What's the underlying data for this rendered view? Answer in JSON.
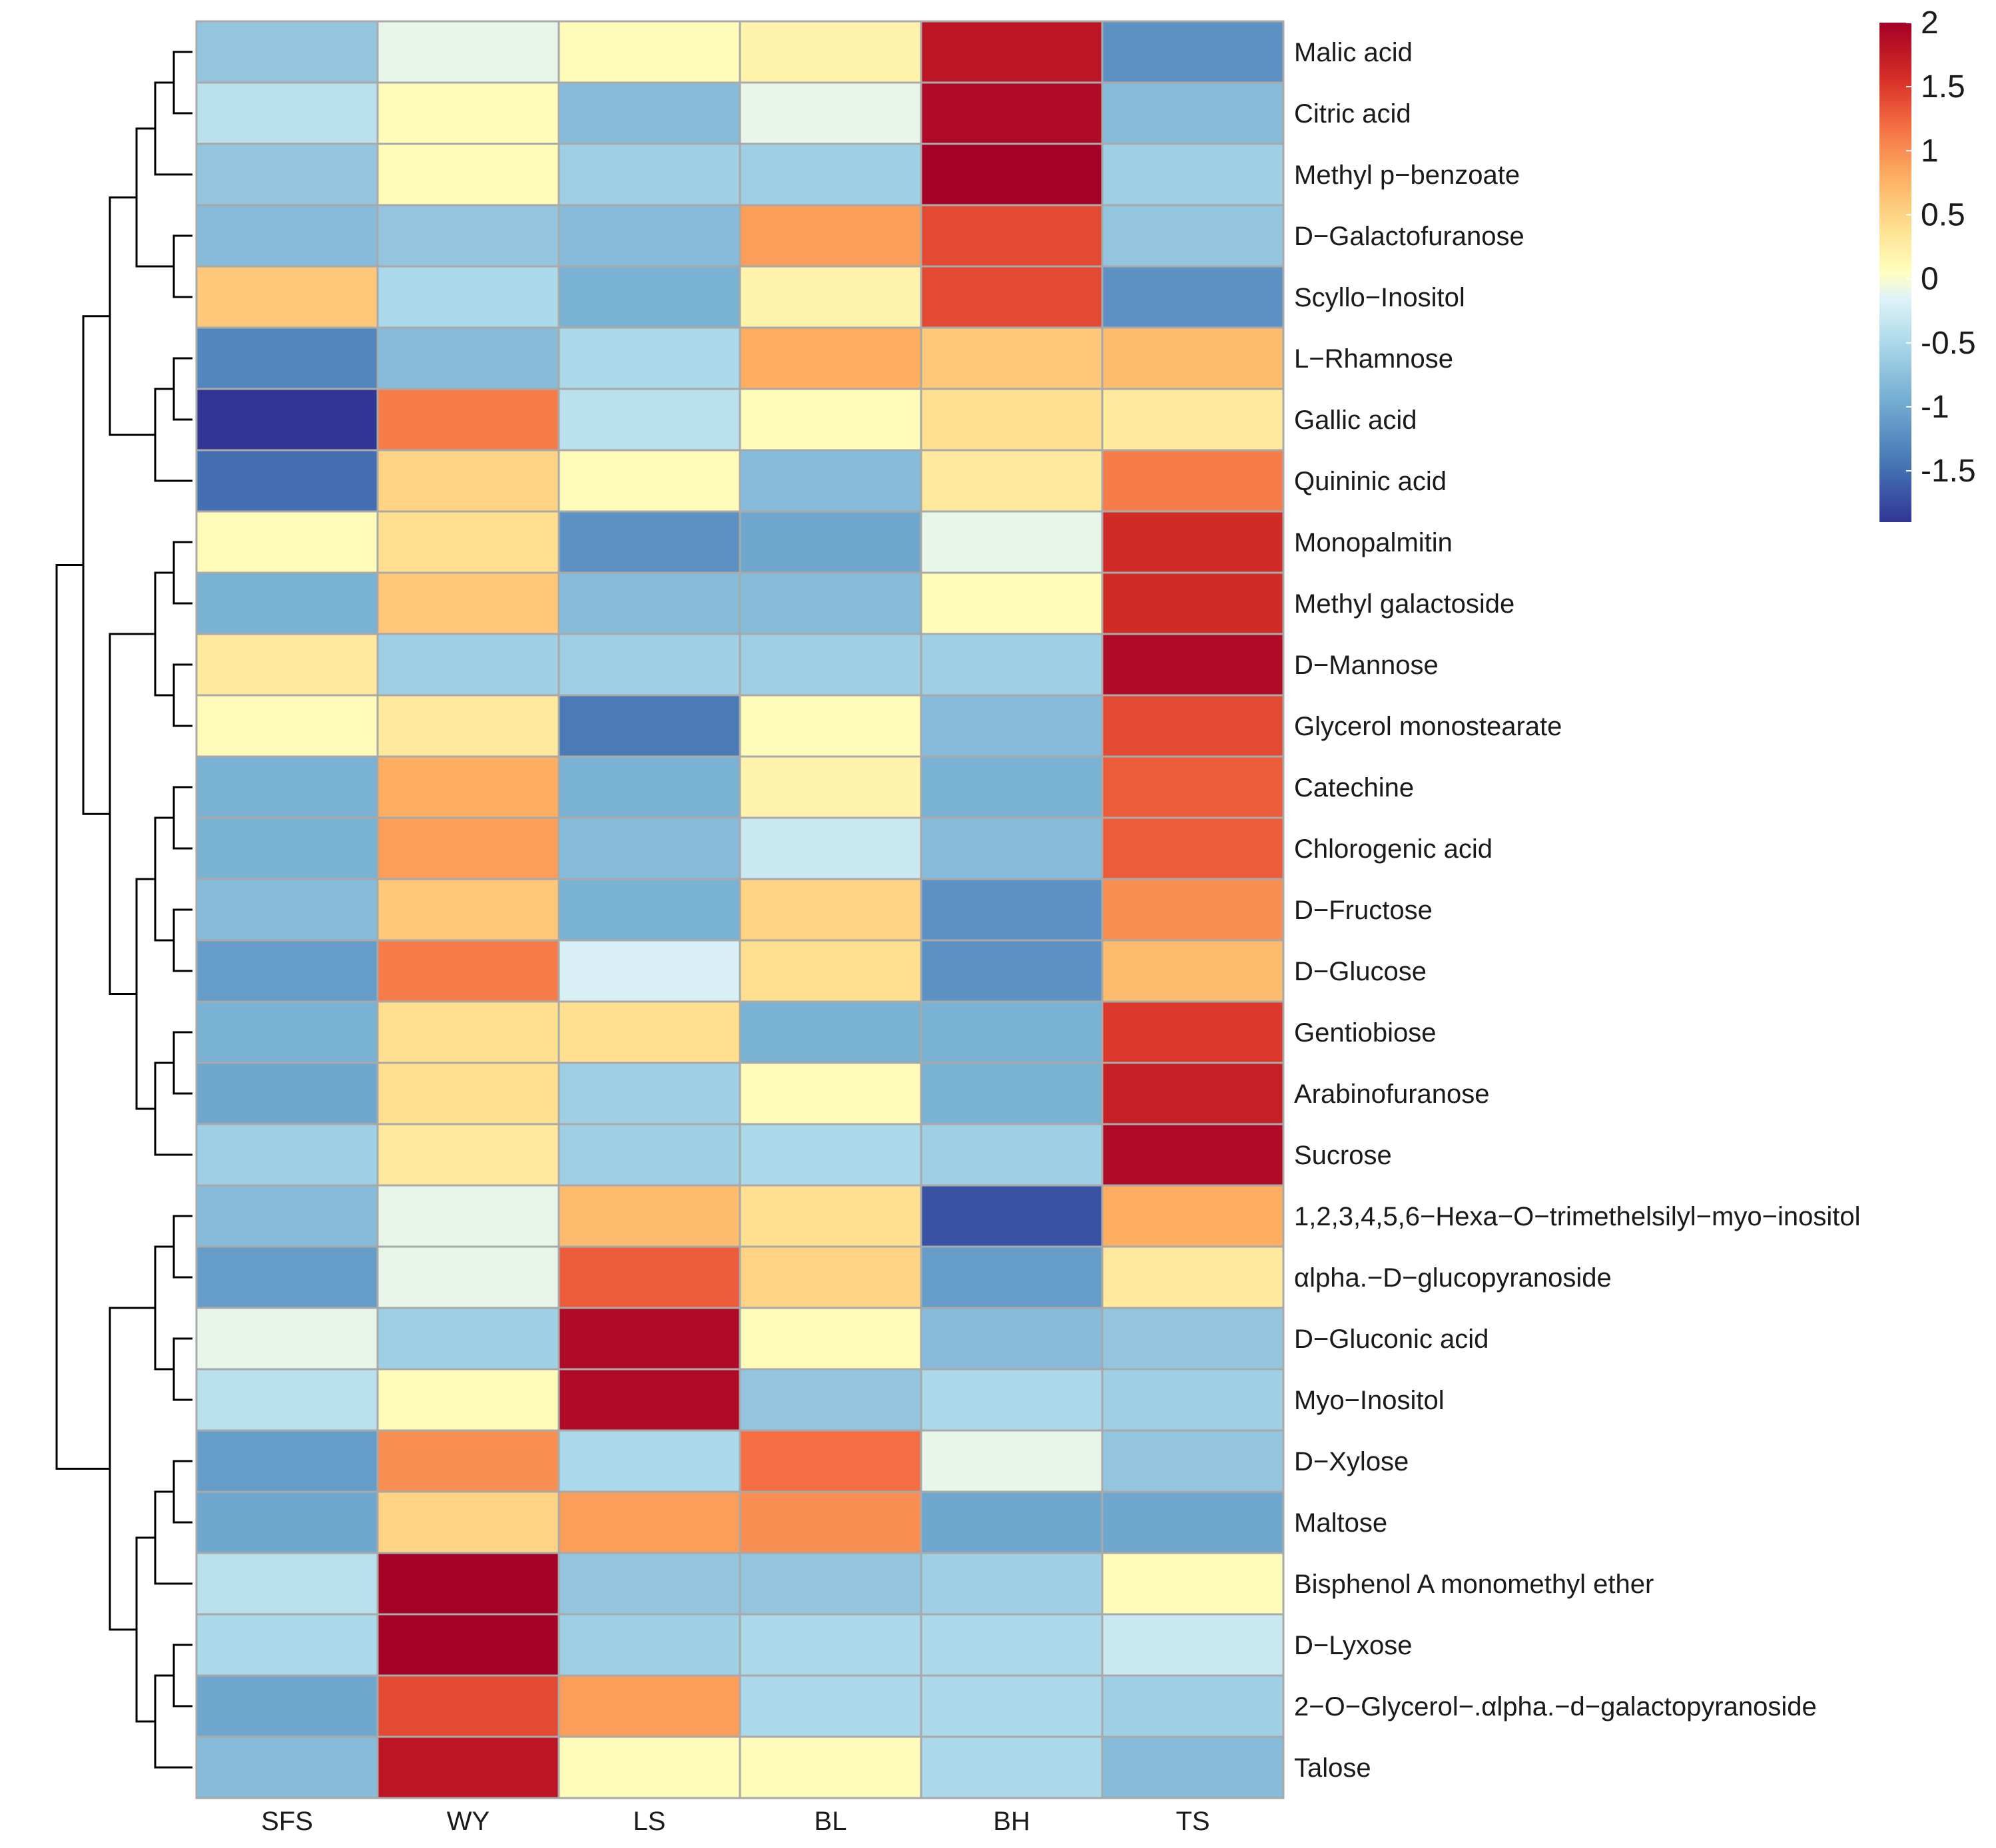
{
  "chart_data": {
    "type": "heatmap",
    "title": "",
    "columns": [
      "SFS",
      "WY",
      "LS",
      "BL",
      "BH",
      "TS"
    ],
    "rows": [
      "Malic acid",
      "Citric acid",
      "Methyl p−benzoate",
      "D−Galactofuranose",
      "Scyllo−Inositol",
      "L−Rhamnose",
      "Gallic acid",
      "Quininic acid",
      "Monopalmitin",
      "Methyl galactoside",
      "D−Mannose",
      "Glycerol monostearate",
      "Catechine",
      "Chlorogenic acid",
      "D−Fructose",
      "D−Glucose",
      "Gentiobiose",
      "Arabinofuranose",
      "Sucrose",
      "1,2,3,4,5,6−Hexa−O−trimethelsilyl−myo−inositol",
      "αlpha.−D−glucopyranoside",
      "D−Gluconic acid",
      "Myo−Inositol",
      "D−Xylose",
      "Maltose",
      "Bisphenol A monomethyl ether",
      "D−Lyxose",
      "2−O−Glycerol−.αlpha.−d−galactopyranoside",
      "Talose"
    ],
    "values": [
      [
        -0.7,
        -0.1,
        0.1,
        0.2,
        1.8,
        -1.2
      ],
      [
        -0.4,
        0.1,
        -0.8,
        -0.1,
        1.9,
        -0.8
      ],
      [
        -0.7,
        0.1,
        -0.6,
        -0.6,
        2.0,
        -0.6
      ],
      [
        -0.8,
        -0.7,
        -0.8,
        0.9,
        1.4,
        -0.7
      ],
      [
        0.6,
        -0.5,
        -0.9,
        0.2,
        1.4,
        -1.2
      ],
      [
        -1.3,
        -0.8,
        -0.5,
        0.8,
        0.6,
        0.7
      ],
      [
        -1.9,
        1.1,
        -0.4,
        0.1,
        0.4,
        0.3
      ],
      [
        -1.5,
        0.5,
        0.1,
        -0.8,
        0.3,
        1.1
      ],
      [
        0.1,
        0.4,
        -1.2,
        -1.0,
        -0.1,
        1.6
      ],
      [
        -0.9,
        0.6,
        -0.8,
        -0.8,
        0.1,
        1.6
      ],
      [
        0.3,
        -0.6,
        -0.6,
        -0.6,
        -0.6,
        1.9
      ],
      [
        0.1,
        0.3,
        -1.4,
        0.1,
        -0.8,
        1.4
      ],
      [
        -0.9,
        0.8,
        -0.9,
        0.2,
        -0.9,
        1.3
      ],
      [
        -0.9,
        0.9,
        -0.8,
        -0.3,
        -0.8,
        1.3
      ],
      [
        -0.8,
        0.6,
        -0.9,
        0.5,
        -1.2,
        1.0
      ],
      [
        -1.1,
        1.1,
        -0.2,
        0.4,
        -1.2,
        0.7
      ],
      [
        -0.9,
        0.4,
        0.4,
        -0.9,
        -0.9,
        1.5
      ],
      [
        -1.0,
        0.4,
        -0.6,
        0.1,
        -0.9,
        1.7
      ],
      [
        -0.6,
        0.3,
        -0.6,
        -0.5,
        -0.6,
        1.9
      ],
      [
        -0.8,
        -0.1,
        0.7,
        0.4,
        -1.7,
        0.8
      ],
      [
        -1.1,
        -0.1,
        1.3,
        0.5,
        -1.1,
        0.3
      ],
      [
        -0.1,
        -0.6,
        1.9,
        0.1,
        -0.8,
        -0.7
      ],
      [
        -0.4,
        0.1,
        1.9,
        -0.7,
        -0.5,
        -0.6
      ],
      [
        -1.1,
        1.0,
        -0.5,
        1.2,
        -0.1,
        -0.7
      ],
      [
        -1.0,
        0.5,
        0.9,
        1.0,
        -1.0,
        -1.0
      ],
      [
        -0.4,
        2.0,
        -0.7,
        -0.7,
        -0.6,
        0.1
      ],
      [
        -0.5,
        2.0,
        -0.6,
        -0.5,
        -0.5,
        -0.3
      ],
      [
        -1.0,
        1.4,
        0.9,
        -0.5,
        -0.5,
        -0.6
      ],
      [
        -0.8,
        1.8,
        0.1,
        0.1,
        -0.5,
        -0.8
      ]
    ],
    "color_scale": {
      "min": -1.9,
      "max": 2.0,
      "stops": [
        {
          "v": -1.9,
          "c": "#313695"
        },
        {
          "v": -1.45,
          "c": "#4575b4"
        },
        {
          "v": -0.95,
          "c": "#74add1"
        },
        {
          "v": -0.5,
          "c": "#abd9e9"
        },
        {
          "v": -0.15,
          "c": "#e0f3f8"
        },
        {
          "v": 0.05,
          "c": "#ffffbf"
        },
        {
          "v": 0.4,
          "c": "#fee090"
        },
        {
          "v": 0.8,
          "c": "#fdae61"
        },
        {
          "v": 1.2,
          "c": "#f46d43"
        },
        {
          "v": 1.55,
          "c": "#d73027"
        },
        {
          "v": 2.0,
          "c": "#a50026"
        }
      ]
    },
    "legend_ticks": [
      "2",
      "1.5",
      "1",
      "0.5",
      "0",
      "-0.5",
      "-1",
      "-1.5"
    ],
    "legend_tick_values": [
      2,
      1.5,
      1,
      0.5,
      0,
      -0.5,
      -1,
      -1.5
    ],
    "legend_position": "top-right",
    "row_dendrogram": "left",
    "row_clusters": [
      [
        0,
        4
      ],
      [
        5,
        7
      ],
      [
        8,
        11
      ],
      [
        12,
        18
      ],
      [
        19,
        22
      ],
      [
        23,
        28
      ]
    ]
  }
}
